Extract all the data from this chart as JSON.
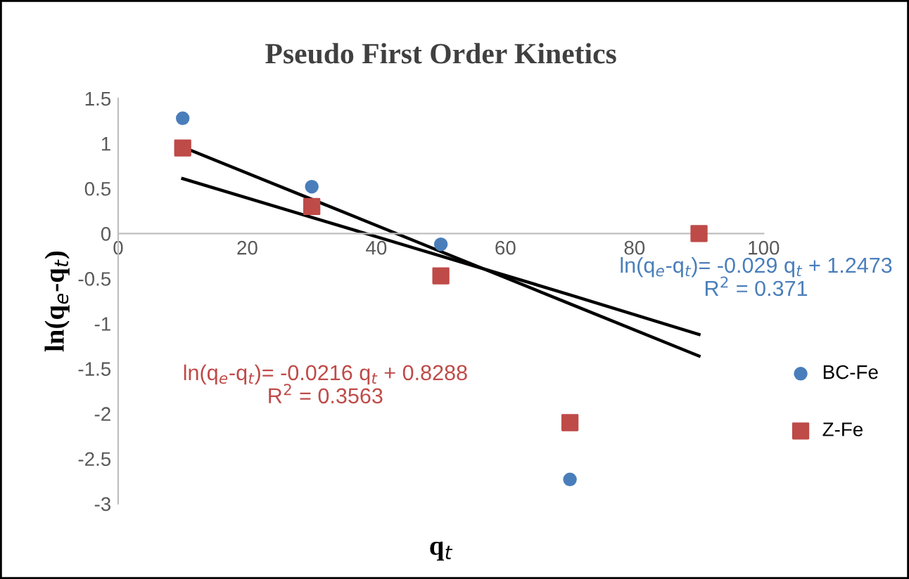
{
  "chart_data": {
    "type": "scatter",
    "title": "Pseudo First Order Kinetics",
    "xlabel": "q$_{t}$",
    "ylabel": "ln(q$_{e}$-q$_{t}$)",
    "x": [
      10,
      30,
      50,
      70,
      90
    ],
    "series": [
      {
        "name": "BC-Fe",
        "color": "#4a7ebb",
        "marker": "circle",
        "values": [
          1.28,
          0.52,
          -0.12,
          -2.73,
          null
        ]
      },
      {
        "name": "Z-Fe",
        "color": "#be4b48",
        "marker": "square",
        "values": [
          0.95,
          0.3,
          -0.47,
          -2.1,
          0.0
        ]
      },
      {
        "type": "line",
        "color": "#000000",
        "values": [
          0.96,
          0.38,
          -0.2,
          -0.78,
          -1.36
        ]
      },
      {
        "type": "line",
        "color": "#000000",
        "values": [
          0.61,
          0.18,
          -0.25,
          -0.68,
          -1.12
        ]
      }
    ],
    "annotations": [
      "ln(q$_{e}$-q$_{t}$)= -0.029 q$_{t}$ + 1.2473\nR$^{2}$ = 0.371",
      "ln(q$_{e}$-q$_{t}$)= -0.0216 q$_{t}$ + 0.8288\nR$^{2}$ = 0.3563"
    ],
    "xlim": [
      0,
      100
    ],
    "xticks": [
      0,
      20,
      40,
      60,
      80,
      100
    ],
    "ylim": [
      -3,
      1.5
    ],
    "yticks": [
      -3,
      -2.5,
      -2,
      -1.5,
      -1,
      -0.5,
      0,
      0.5,
      1,
      1.5
    ],
    "grid": false,
    "legend": "right"
  }
}
